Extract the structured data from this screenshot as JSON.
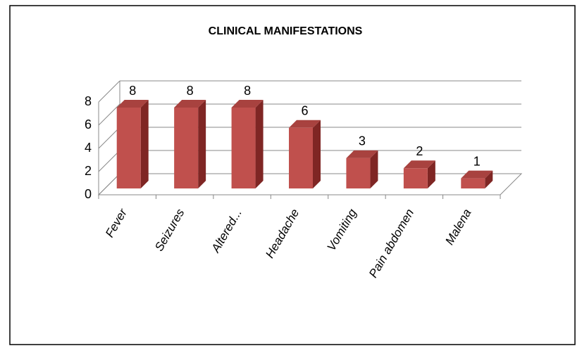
{
  "chart_data": {
    "type": "bar",
    "title": "CLINICAL MANIFESTATIONS",
    "categories": [
      "Fever",
      "Seizures",
      "Altered...",
      "Headache",
      "Vomiting",
      "Pain abdomen",
      "Malena"
    ],
    "values": [
      8,
      8,
      8,
      6,
      3,
      2,
      1
    ],
    "color": "#c0504d",
    "ylim": [
      0,
      8
    ],
    "yticks": [
      0,
      2,
      4,
      6,
      8
    ],
    "grid": true
  }
}
